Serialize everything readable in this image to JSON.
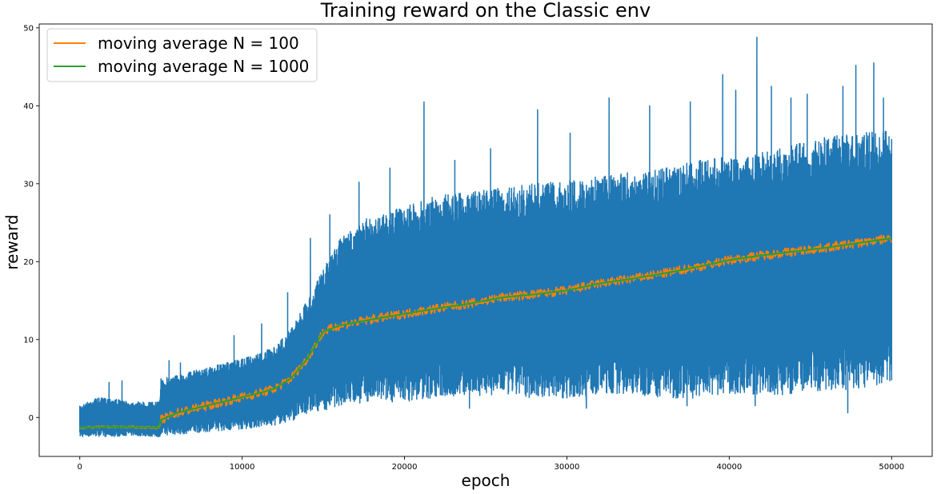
{
  "chart_data": {
    "type": "line",
    "title": "Training reward on the Classic env",
    "xlabel": "epoch",
    "ylabel": "reward",
    "xlim": [
      -2500,
      52500
    ],
    "ylim": [
      -5,
      50.5
    ],
    "x_ticks": [
      0,
      10000,
      20000,
      30000,
      40000,
      50000
    ],
    "y_ticks": [
      0,
      10,
      20,
      30,
      40,
      50
    ],
    "grid": false,
    "legend_position": "top-left",
    "x_range": [
      0,
      50000
    ],
    "series": [
      {
        "role": "raw reward",
        "color": "#1f77b4",
        "band": {
          "x": [
            0,
            1000,
            2000,
            3000,
            4000,
            4900,
            5000,
            6000,
            8000,
            10000,
            12000,
            13000,
            14000,
            15000,
            16000,
            18000,
            20000,
            22000,
            24000,
            26000,
            28000,
            30000,
            32000,
            34000,
            36000,
            38000,
            40000,
            42000,
            44000,
            46000,
            48000,
            50000
          ],
          "low": [
            -2.5,
            -2.4,
            -2.5,
            -2.3,
            -2.4,
            -2.5,
            -2.3,
            -2.2,
            -1.8,
            -1.5,
            -1.0,
            -0.5,
            0.5,
            1.0,
            1.5,
            2.0,
            2.0,
            2.5,
            2.8,
            2.8,
            2.5,
            2.5,
            3.0,
            3.0,
            2.5,
            2.5,
            3.0,
            2.8,
            3.0,
            3.5,
            3.5,
            4.5
          ],
          "high": [
            1.5,
            2.5,
            2.5,
            2.0,
            2.0,
            2.0,
            5.0,
            5.5,
            6.5,
            7.5,
            9.0,
            11.5,
            15.0,
            19.0,
            23.0,
            26.0,
            27.0,
            28.5,
            29.0,
            29.5,
            30.0,
            30.5,
            31.0,
            31.5,
            32.0,
            33.0,
            33.5,
            34.0,
            35.0,
            36.0,
            36.5,
            37.0
          ]
        },
        "spikes": [
          [
            1800,
            4.5
          ],
          [
            2600,
            4.7
          ],
          [
            5500,
            7.3
          ],
          [
            6200,
            7.0
          ],
          [
            9500,
            10.5
          ],
          [
            11200,
            12.0
          ],
          [
            12800,
            16.0
          ],
          [
            14200,
            23.0
          ],
          [
            15400,
            26.0
          ],
          [
            17200,
            30.2
          ],
          [
            19100,
            32.0
          ],
          [
            21200,
            40.5
          ],
          [
            23100,
            33.0
          ],
          [
            25300,
            34.5
          ],
          [
            28200,
            39.5
          ],
          [
            30200,
            36.5
          ],
          [
            32600,
            41.0
          ],
          [
            35100,
            40.0
          ],
          [
            37600,
            40.5
          ],
          [
            39600,
            44.0
          ],
          [
            40400,
            42.0
          ],
          [
            41700,
            48.8
          ],
          [
            42600,
            42.5
          ],
          [
            43800,
            41.0
          ],
          [
            44800,
            41.5
          ],
          [
            47000,
            42.5
          ],
          [
            47800,
            45.2
          ],
          [
            48900,
            45.5
          ],
          [
            49500,
            41.0
          ]
        ],
        "dips": [
          [
            15200,
            1.0
          ],
          [
            24000,
            1.2
          ],
          [
            31200,
            1.2
          ],
          [
            37400,
            1.5
          ],
          [
            41600,
            1.5
          ],
          [
            47300,
            0.6
          ]
        ]
      },
      {
        "name": "moving average N = 100",
        "color": "#ff7f0e",
        "x": [
          0,
          2000,
          4900,
          5000,
          6000,
          8000,
          10000,
          11000,
          12000,
          13000,
          14000,
          15000,
          16000,
          18000,
          20000,
          22000,
          24000,
          26000,
          28000,
          30000,
          32000,
          34000,
          36000,
          38000,
          40000,
          42000,
          44000,
          46000,
          48000,
          50000
        ],
        "values": [
          -1.3,
          -1.2,
          -1.3,
          -0.3,
          0.6,
          1.6,
          2.6,
          3.1,
          3.7,
          5.0,
          7.5,
          11.0,
          11.8,
          12.6,
          13.3,
          14.0,
          14.6,
          15.4,
          15.8,
          16.3,
          17.2,
          17.8,
          18.5,
          19.3,
          20.2,
          20.8,
          21.3,
          21.8,
          22.4,
          23.0
        ],
        "noise": 0.6
      },
      {
        "name": "moving average N = 1000",
        "color": "#2ca02c",
        "x": [
          0,
          2000,
          4900,
          5000,
          6000,
          8000,
          10000,
          11000,
          12000,
          13000,
          14000,
          15000,
          16000,
          18000,
          20000,
          22000,
          24000,
          26000,
          28000,
          30000,
          32000,
          34000,
          36000,
          38000,
          40000,
          42000,
          44000,
          46000,
          48000,
          50000
        ],
        "values": [
          -1.3,
          -1.2,
          -1.3,
          -0.3,
          0.6,
          1.6,
          2.6,
          3.1,
          3.7,
          5.0,
          7.5,
          11.0,
          11.8,
          12.6,
          13.3,
          14.0,
          14.6,
          15.4,
          15.8,
          16.3,
          17.2,
          17.8,
          18.5,
          19.3,
          20.2,
          20.8,
          21.3,
          21.8,
          22.4,
          23.0
        ],
        "noise": 0.0
      }
    ]
  }
}
